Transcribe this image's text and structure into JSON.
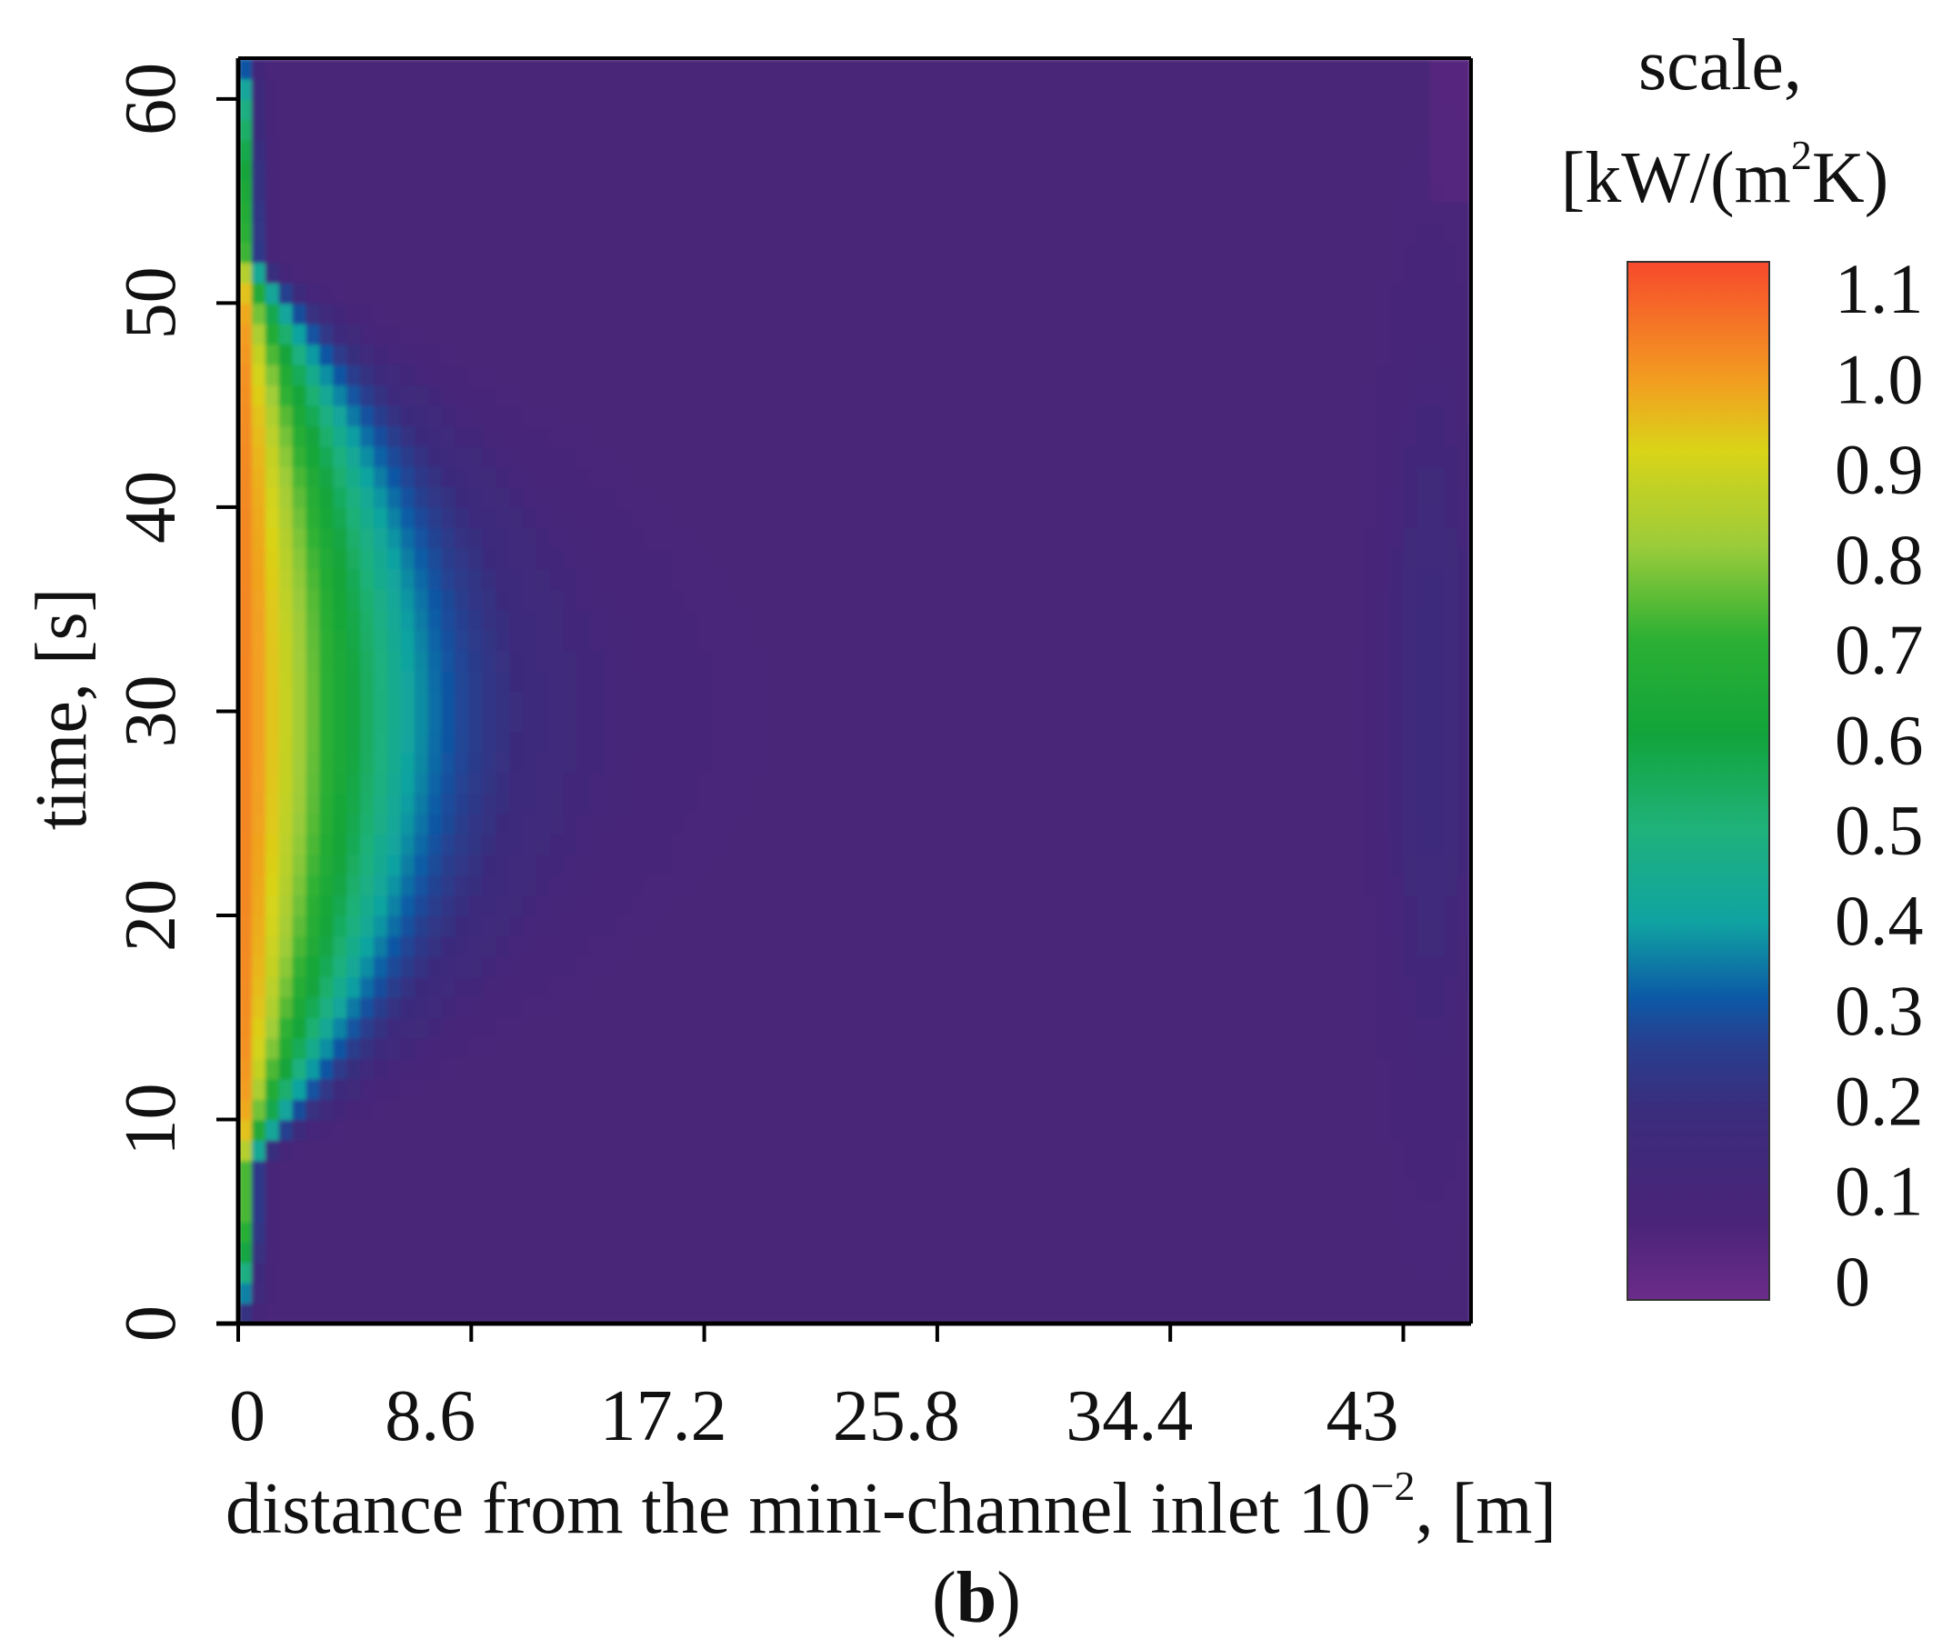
{
  "chart_data": {
    "type": "heatmap",
    "title": "",
    "xlabel": "distance from the mini-channel inlet 10",
    "xlabel_sup": "−2",
    "xlabel_tail": ", [m]",
    "ylabel": "time, [s]",
    "xlim": [
      0,
      45.5
    ],
    "ylim": [
      0,
      62
    ],
    "x_ticks": [
      0,
      8.6,
      17.2,
      25.8,
      34.4,
      43
    ],
    "x_tick_labels": [
      "0",
      "8.6",
      "17.2",
      "25.8",
      "34.4",
      "43"
    ],
    "y_ticks": [
      0,
      10,
      20,
      30,
      40,
      50,
      60
    ],
    "y_tick_labels": [
      "0",
      "10",
      "20",
      "30",
      "40",
      "50",
      "60"
    ],
    "z_unit": "kW/(m2K)",
    "z_range": [
      0,
      1.1
    ],
    "ridge_time_s": 30,
    "ridge_peak_value": 1.02,
    "colorbar": {
      "title_line1": "scale,",
      "title_line2_a": "[kW/(m",
      "title_line2_sup": "2",
      "title_line2_b": "K)",
      "ticks": [
        1.1,
        1.0,
        0.9,
        0.8,
        0.7,
        0.6,
        0.5,
        0.4,
        0.3,
        0.2,
        0.1,
        0
      ],
      "tick_labels": [
        "1.1",
        "1.0",
        "0.9",
        "0.8",
        "0.7",
        "0.6",
        "0.5",
        "0.4",
        "0.3",
        "0.2",
        "0.1",
        "0"
      ],
      "stops": [
        {
          "value": 0.0,
          "color": "#6b2c8a"
        },
        {
          "value": 0.08,
          "color": "#4a2478"
        },
        {
          "value": 0.2,
          "color": "#3b2c7c"
        },
        {
          "value": 0.27,
          "color": "#283f8f"
        },
        {
          "value": 0.32,
          "color": "#0c59a6"
        },
        {
          "value": 0.4,
          "color": "#10a3a2"
        },
        {
          "value": 0.5,
          "color": "#1fb27a"
        },
        {
          "value": 0.6,
          "color": "#12a43a"
        },
        {
          "value": 0.7,
          "color": "#2cb034"
        },
        {
          "value": 0.8,
          "color": "#9ccc3a"
        },
        {
          "value": 0.9,
          "color": "#d9d418"
        },
        {
          "value": 0.97,
          "color": "#f2a020"
        },
        {
          "value": 1.1,
          "color": "#f7492c"
        }
      ]
    },
    "panel_label": "b"
  }
}
